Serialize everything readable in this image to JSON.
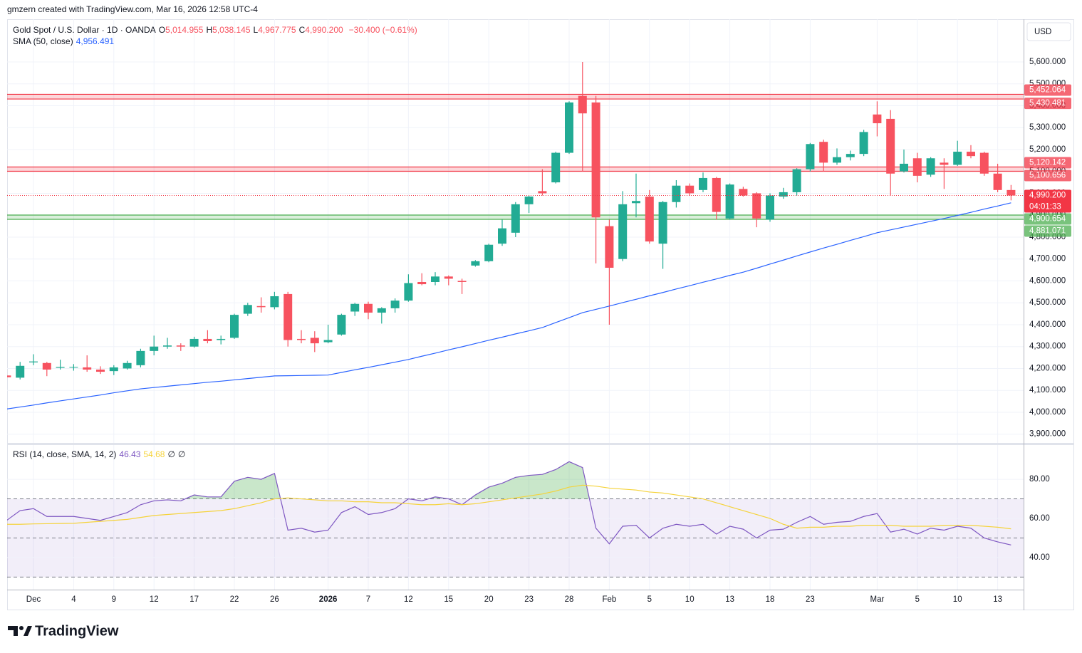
{
  "header": {
    "attribution": "gmzern created with TradingView.com, Mar 16, 2026 12:58 UTC-4"
  },
  "footer": {
    "logo": "TradingView"
  },
  "chart_data": [
    {
      "type": "candlestick",
      "currency": "USD",
      "categories": [
        null,
        null,
        "Dec",
        null,
        null,
        "4",
        null,
        null,
        "9",
        null,
        null,
        "12",
        null,
        null,
        "17",
        null,
        null,
        "22",
        null,
        null,
        "26",
        null,
        null,
        null,
        "2026",
        null,
        null,
        "7",
        null,
        null,
        "12",
        null,
        null,
        "15",
        null,
        null,
        "20",
        null,
        null,
        "23",
        null,
        null,
        "28",
        null,
        null,
        "Feb",
        null,
        null,
        "5",
        null,
        null,
        "10",
        null,
        null,
        "13",
        null,
        null,
        "18",
        null,
        null,
        "23",
        null,
        null,
        null,
        null,
        "Mar",
        null,
        null,
        "5",
        null,
        null,
        "10",
        null,
        null,
        "13",
        null
      ],
      "ohlc_labels": [
        {
          "key": "O",
          "label": "5,014.955"
        },
        {
          "key": "H",
          "label": "5,038.145"
        },
        {
          "key": "L",
          "label": "4,967.775"
        },
        {
          "key": "C",
          "label": "4,990.200"
        }
      ],
      "change_label": "−30.400 (−0.61%)",
      "series": [
        {
          "name": "Gold Spot / U.S. Dollar · 1D · OANDA",
          "up_color": "#22ab94",
          "down_color": "#f7525f",
          "open": [
            4168,
            4158,
            4228,
            4225,
            4203,
            4205,
            4205,
            4195,
            4188,
            4200,
            4215,
            4280,
            4300,
            4305,
            4300,
            4335,
            4330,
            4340,
            4450,
            4485,
            4480,
            4540,
            4335,
            4340,
            4320,
            4355,
            4460,
            4495,
            4455,
            4475,
            4510,
            4595,
            4595,
            4620,
            4600,
            4670,
            4690,
            4770,
            4820,
            4950,
            5010,
            5050,
            5185,
            5445,
            5415,
            4850,
            4700,
            4955,
            4985,
            4770,
            4960,
            5035,
            5015,
            5070,
            4885,
            5020,
            5000,
            4880,
            4985,
            5005,
            5110,
            5235,
            5140,
            5165,
            5180,
            5360,
            5340,
            5100,
            5160,
            5085,
            5140,
            5130,
            5190,
            5185,
            5090,
            5014.955
          ],
          "high": [
            4172,
            4230,
            4265,
            4230,
            4240,
            4220,
            4260,
            4210,
            4215,
            4235,
            4290,
            4350,
            4340,
            4315,
            4345,
            4375,
            4350,
            4450,
            4500,
            4525,
            4550,
            4550,
            4375,
            4370,
            4400,
            4450,
            4500,
            4505,
            4480,
            4520,
            4630,
            4635,
            4640,
            4625,
            4610,
            4695,
            4770,
            4880,
            4960,
            4990,
            5110,
            5190,
            5420,
            5600,
            5445,
            4880,
            5010,
            5090,
            5015,
            4965,
            5060,
            5045,
            5095,
            5075,
            5045,
            5030,
            5005,
            5000,
            5025,
            5115,
            5230,
            5245,
            5205,
            5195,
            5290,
            5420,
            5380,
            5200,
            5185,
            5165,
            5160,
            5240,
            5220,
            5190,
            5135,
            5038.145
          ],
          "low": [
            4155,
            4150,
            4215,
            4165,
            4195,
            4190,
            4185,
            4175,
            4170,
            4195,
            4205,
            4260,
            4290,
            4280,
            4295,
            4315,
            4310,
            4335,
            4440,
            4455,
            4470,
            4300,
            4315,
            4275,
            4315,
            4350,
            4440,
            4425,
            4405,
            4455,
            4505,
            4580,
            4580,
            4580,
            4540,
            4665,
            4685,
            4760,
            4800,
            4910,
            4990,
            5045,
            5180,
            5100,
            4680,
            4400,
            4690,
            4890,
            4770,
            4655,
            4935,
            4990,
            5005,
            4880,
            4880,
            4985,
            4845,
            4870,
            4975,
            4990,
            5100,
            5100,
            5130,
            5150,
            5170,
            5260,
            4990,
            5095,
            5050,
            5075,
            5020,
            5125,
            5160,
            5080,
            5005,
            4967.775
          ],
          "close": [
            4160,
            4212,
            4232,
            4195,
            4207,
            4207,
            4195,
            4185,
            4205,
            4225,
            4280,
            4300,
            4305,
            4300,
            4335,
            4325,
            4335,
            4445,
            4490,
            4480,
            4530,
            4330,
            4330,
            4315,
            4330,
            4445,
            4495,
            4455,
            4475,
            4510,
            4590,
            4585,
            4620,
            4610,
            4595,
            4690,
            4765,
            4840,
            4950,
            4985,
            5000,
            5185,
            5415,
            5365,
            4890,
            4660,
            4950,
            4965,
            4780,
            4960,
            5035,
            5000,
            5070,
            4915,
            5040,
            4990,
            4885,
            4990,
            5005,
            5110,
            5225,
            5140,
            5165,
            5180,
            5280,
            5320,
            5090,
            5135,
            5080,
            5160,
            5130,
            5190,
            5170,
            5090,
            5015,
            4990.2
          ]
        },
        {
          "name": "SMA (50, close)",
          "color": "#2962ff",
          "value_label": "4,956.491",
          "values": [
            4015,
            4024,
            4033,
            4043,
            4052,
            4061,
            4070,
            4079,
            4089,
            4098,
            4107,
            4113,
            4119,
            4125,
            4131,
            4137,
            4142,
            4148,
            4154,
            4160,
            4166,
            4167,
            4168,
            4169,
            4170,
            4182,
            4194,
            4205,
            4217,
            4229,
            4241,
            4256,
            4270,
            4285,
            4299,
            4314,
            4329,
            4343,
            4358,
            4372,
            4387,
            4410,
            4432,
            4455,
            4470,
            4485,
            4501,
            4516,
            4532,
            4547,
            4563,
            4578,
            4594,
            4609,
            4625,
            4640,
            4658,
            4677,
            4695,
            4714,
            4732,
            4750,
            4767,
            4785,
            4802,
            4820,
            4833,
            4846,
            4859,
            4872,
            4885,
            4899,
            4913,
            4928,
            4942,
            4956.491
          ]
        }
      ],
      "zones": [
        {
          "top": 5452.064,
          "bottom": 5430.481,
          "top_label": "5,452.064",
          "bottom_label": "5,430.481",
          "color": "#f23645"
        },
        {
          "top": 5120.142,
          "bottom": 5100.656,
          "top_label": "5,120.142",
          "bottom_label": "5,100.656",
          "color": "#f23645"
        },
        {
          "top": 4900.654,
          "bottom": 4881.071,
          "top_label": "4,900.654",
          "bottom_label": "4,881.071",
          "color": "#4caf50"
        }
      ],
      "last_price": {
        "value": 4990.2,
        "label": "4,990.200",
        "countdown": "04:01:33",
        "color": "#f23645"
      },
      "ylim": [
        3860,
        5795
      ],
      "yticks": [
        {
          "value": 3900,
          "label": "3,900.000"
        },
        {
          "value": 4000,
          "label": "4,000.000"
        },
        {
          "value": 4100,
          "label": "4,100.000"
        },
        {
          "value": 4200,
          "label": "4,200.000"
        },
        {
          "value": 4300,
          "label": "4,300.000"
        },
        {
          "value": 4400,
          "label": "4,400.000"
        },
        {
          "value": 4500,
          "label": "4,500.000"
        },
        {
          "value": 4600,
          "label": "4,600.000"
        },
        {
          "value": 4700,
          "label": "4,700.000"
        },
        {
          "value": 4800,
          "label": "4,800.000"
        },
        {
          "value": 4900,
          "label": "4,900.000"
        },
        {
          "value": 5000,
          "label": "5,000.000"
        },
        {
          "value": 5100,
          "label": "5,100.000"
        },
        {
          "value": 5200,
          "label": "5,200.000"
        },
        {
          "value": 5300,
          "label": "5,300.000"
        },
        {
          "value": 5400,
          "label": "5,400.000"
        },
        {
          "value": 5500,
          "label": "5,500.000"
        },
        {
          "value": 5600,
          "label": "5,600.000"
        }
      ],
      "grid": true
    },
    {
      "type": "line",
      "title": "RSI (14, close, SMA, 14, 2)",
      "extra_labels": [
        "∅",
        "∅"
      ],
      "series": [
        {
          "name": "RSI",
          "color": "#7e57c2",
          "value_label": "46.43",
          "values": [
            59,
            64,
            65,
            61,
            61,
            61,
            60,
            59,
            61,
            63,
            67,
            69,
            69.5,
            69,
            72,
            71,
            71,
            79,
            81,
            80,
            83,
            54,
            55,
            53,
            54,
            63,
            66,
            62,
            63,
            65,
            70,
            69,
            71,
            70,
            67,
            72,
            76,
            78,
            81,
            82,
            82.5,
            85,
            89,
            86,
            55,
            47,
            56,
            56.5,
            50,
            55,
            57,
            56,
            57,
            52,
            56,
            54.5,
            50,
            54,
            54.5,
            58,
            61,
            57,
            58,
            58.5,
            61,
            62.5,
            53,
            54.5,
            52,
            55,
            54,
            56,
            55,
            50,
            48,
            46.43
          ]
        },
        {
          "name": "RSI-based MA",
          "color": "#f5d33a",
          "value_label": "54.68",
          "values": [
            57,
            57,
            57.2,
            57.3,
            57.4,
            57.5,
            58,
            58.5,
            59,
            59.5,
            60.5,
            61.5,
            62,
            62.5,
            63,
            63.5,
            64,
            65,
            66.5,
            68,
            70,
            70.5,
            70,
            69.5,
            69,
            69,
            68.5,
            68.5,
            68,
            68,
            67.5,
            67,
            67,
            67.5,
            67,
            67.5,
            68.5,
            69.5,
            70.5,
            71.5,
            72.5,
            74,
            76,
            77,
            76.5,
            75.5,
            75,
            74.5,
            73.5,
            73,
            72,
            71,
            70,
            68,
            66,
            64,
            62,
            60,
            57,
            55,
            55.5,
            55.5,
            56,
            56,
            56.5,
            56.5,
            56.5,
            56,
            56,
            56,
            56.5,
            56.5,
            56.5,
            56,
            55.5,
            54.68
          ]
        }
      ],
      "levels": [
        70,
        50,
        30
      ],
      "band": [
        30,
        70
      ],
      "band_color": "#7e57c2",
      "overbought_color": "#4caf50",
      "ylim": [
        23.6,
        97.5
      ],
      "yticks": [
        {
          "value": 40,
          "label": "40.00"
        },
        {
          "value": 60,
          "label": "60.00"
        },
        {
          "value": 80,
          "label": "80.00"
        }
      ],
      "grid": true
    }
  ]
}
